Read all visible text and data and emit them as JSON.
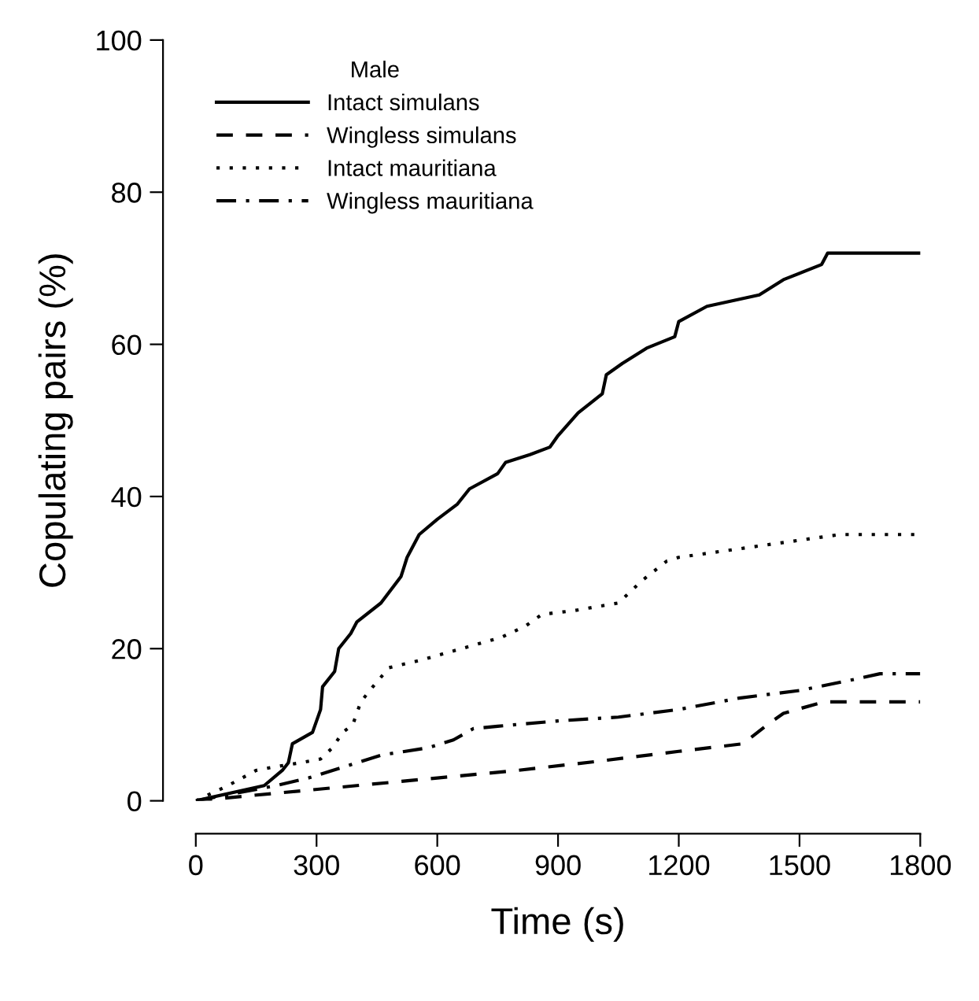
{
  "chart_data": {
    "type": "line",
    "xlabel": "Time (s)",
    "ylabel": "Copulating pairs (%)",
    "legend_title": "Male",
    "legend": "top left",
    "grid": false,
    "marker": "none",
    "xlim": [
      0,
      1800
    ],
    "ylim": [
      0,
      100
    ],
    "xticks": [
      0,
      300,
      600,
      900,
      1200,
      1500,
      1800
    ],
    "yticks": [
      0,
      20,
      40,
      60,
      80,
      100
    ],
    "series": [
      {
        "name": "Intact simulans",
        "color": "#000000",
        "line_style": "solid",
        "x": [
          0,
          170,
          215,
          230,
          240,
          290,
          310,
          315,
          345,
          355,
          385,
          400,
          460,
          510,
          525,
          555,
          600,
          650,
          680,
          750,
          770,
          830,
          880,
          900,
          950,
          1010,
          1020,
          1060,
          1120,
          1190,
          1200,
          1270,
          1400,
          1460,
          1555,
          1570,
          1800
        ],
        "values": [
          0,
          2,
          4,
          5,
          7.5,
          9,
          12,
          15,
          17,
          20,
          22,
          23.5,
          26,
          29.5,
          32,
          35,
          37,
          39,
          41,
          43,
          44.5,
          45.5,
          46.5,
          48,
          51,
          53.5,
          56,
          57.5,
          59.5,
          61,
          63,
          65,
          66.5,
          68.5,
          70.5,
          72,
          72
        ]
      },
      {
        "name": "Wingless simulans",
        "color": "#000000",
        "line_style": "dashed",
        "x": [
          0,
          200,
          400,
          600,
          800,
          1000,
          1200,
          1360,
          1420,
          1460,
          1560,
          1800
        ],
        "values": [
          0,
          1,
          2,
          3,
          4,
          5.2,
          6.5,
          7.5,
          10,
          11.5,
          13,
          13
        ]
      },
      {
        "name": "Intact mauritiana",
        "color": "#000000",
        "line_style": "dotted",
        "x": [
          0,
          80,
          150,
          200,
          260,
          310,
          340,
          365,
          390,
          410,
          440,
          480,
          560,
          660,
          760,
          820,
          860,
          940,
          1050,
          1110,
          1170,
          1200,
          1400,
          1600,
          1800
        ],
        "values": [
          0,
          2,
          4,
          4.5,
          5,
          5.5,
          7,
          9,
          10,
          13,
          15,
          17.5,
          18.5,
          20,
          21.5,
          23,
          24.5,
          25,
          26,
          29,
          31.5,
          32,
          33.5,
          35,
          35
        ]
      },
      {
        "name": "Wingless mauritiana",
        "color": "#000000",
        "line_style": "dashdot",
        "x": [
          0,
          200,
          280,
          340,
          400,
          460,
          580,
          640,
          690,
          750,
          900,
          1050,
          1200,
          1350,
          1500,
          1640,
          1700,
          1800
        ],
        "values": [
          0,
          2,
          3,
          4,
          5,
          6,
          7,
          8,
          9.5,
          9.8,
          10.5,
          11,
          12,
          13.5,
          14.5,
          16,
          16.7,
          16.7
        ]
      }
    ]
  }
}
